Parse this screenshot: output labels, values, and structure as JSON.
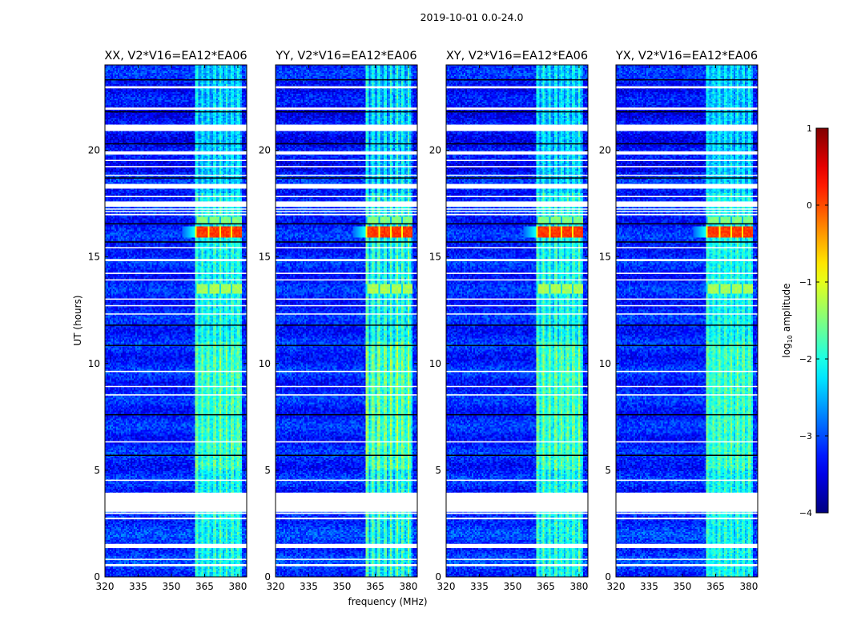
{
  "chart_data": {
    "type": "heatmap",
    "title": "2019-10-01 0.0-24.0",
    "xlabel": "frequency (MHz)",
    "ylabel": "UT (hours)",
    "xlim": [
      320,
      384
    ],
    "ylim": [
      0,
      24
    ],
    "xticks": [
      320,
      335,
      350,
      365,
      380
    ],
    "yticks": [
      0,
      5,
      10,
      15,
      20
    ],
    "panels": [
      {
        "title": "XX, V2*V16=EA12*EA06",
        "rfi_scale": 1.0
      },
      {
        "title": "YY, V2*V16=EA12*EA06",
        "rfi_scale": 1.3
      },
      {
        "title": "XY, V2*V16=EA12*EA06",
        "rfi_scale": 1.0
      },
      {
        "title": "YX, V2*V16=EA12*EA06",
        "rfi_scale": 0.9
      }
    ],
    "colorbar": {
      "label": "log10 amplitude",
      "label_main": "log",
      "label_sub": "10",
      "label_rest": " amplitude",
      "colormap": "jet",
      "range": [
        -4,
        1
      ],
      "ticks": [
        1,
        0,
        -1,
        -2,
        -3,
        -4
      ]
    },
    "background_level": -3.2,
    "rfi_band_mhz": [
      361,
      382
    ],
    "rfi_band_level": -2.2,
    "rfi_bursts": [
      {
        "hours": [
          15.9,
          16.4
        ],
        "level": 0.1
      },
      {
        "hours": [
          13.3,
          13.7
        ],
        "level": -1.3
      },
      {
        "hours": [
          16.6,
          16.9
        ],
        "level": -1.5
      }
    ],
    "flagged_hours": [
      [
        0.5,
        0.6
      ],
      [
        0.8,
        0.85
      ],
      [
        1.35,
        1.55
      ],
      [
        2.7,
        2.78
      ],
      [
        2.95,
        3.02
      ],
      [
        3.05,
        3.95
      ],
      [
        4.5,
        4.56
      ],
      [
        6.3,
        6.36
      ],
      [
        8.5,
        8.56
      ],
      [
        8.9,
        8.95
      ],
      [
        9.6,
        9.66
      ],
      [
        12.3,
        12.35
      ],
      [
        12.7,
        12.74
      ],
      [
        13.0,
        13.05
      ],
      [
        13.9,
        13.95
      ],
      [
        14.2,
        14.26
      ],
      [
        14.8,
        14.9
      ],
      [
        15.4,
        15.46
      ],
      [
        16.95,
        17.02
      ],
      [
        17.1,
        17.15
      ],
      [
        17.22,
        17.27
      ],
      [
        17.35,
        17.6
      ],
      [
        17.8,
        17.86
      ],
      [
        18.2,
        18.42
      ],
      [
        18.8,
        18.85
      ],
      [
        19.2,
        19.26
      ],
      [
        19.5,
        19.55
      ],
      [
        19.8,
        19.95
      ],
      [
        20.9,
        21.2
      ],
      [
        21.9,
        22.0
      ],
      [
        22.9,
        23.0
      ]
    ],
    "gap_hours": [
      5.7,
      7.6,
      10.85,
      11.8,
      15.7,
      16.55,
      18.7,
      20.3,
      21.8,
      23.3
    ]
  }
}
